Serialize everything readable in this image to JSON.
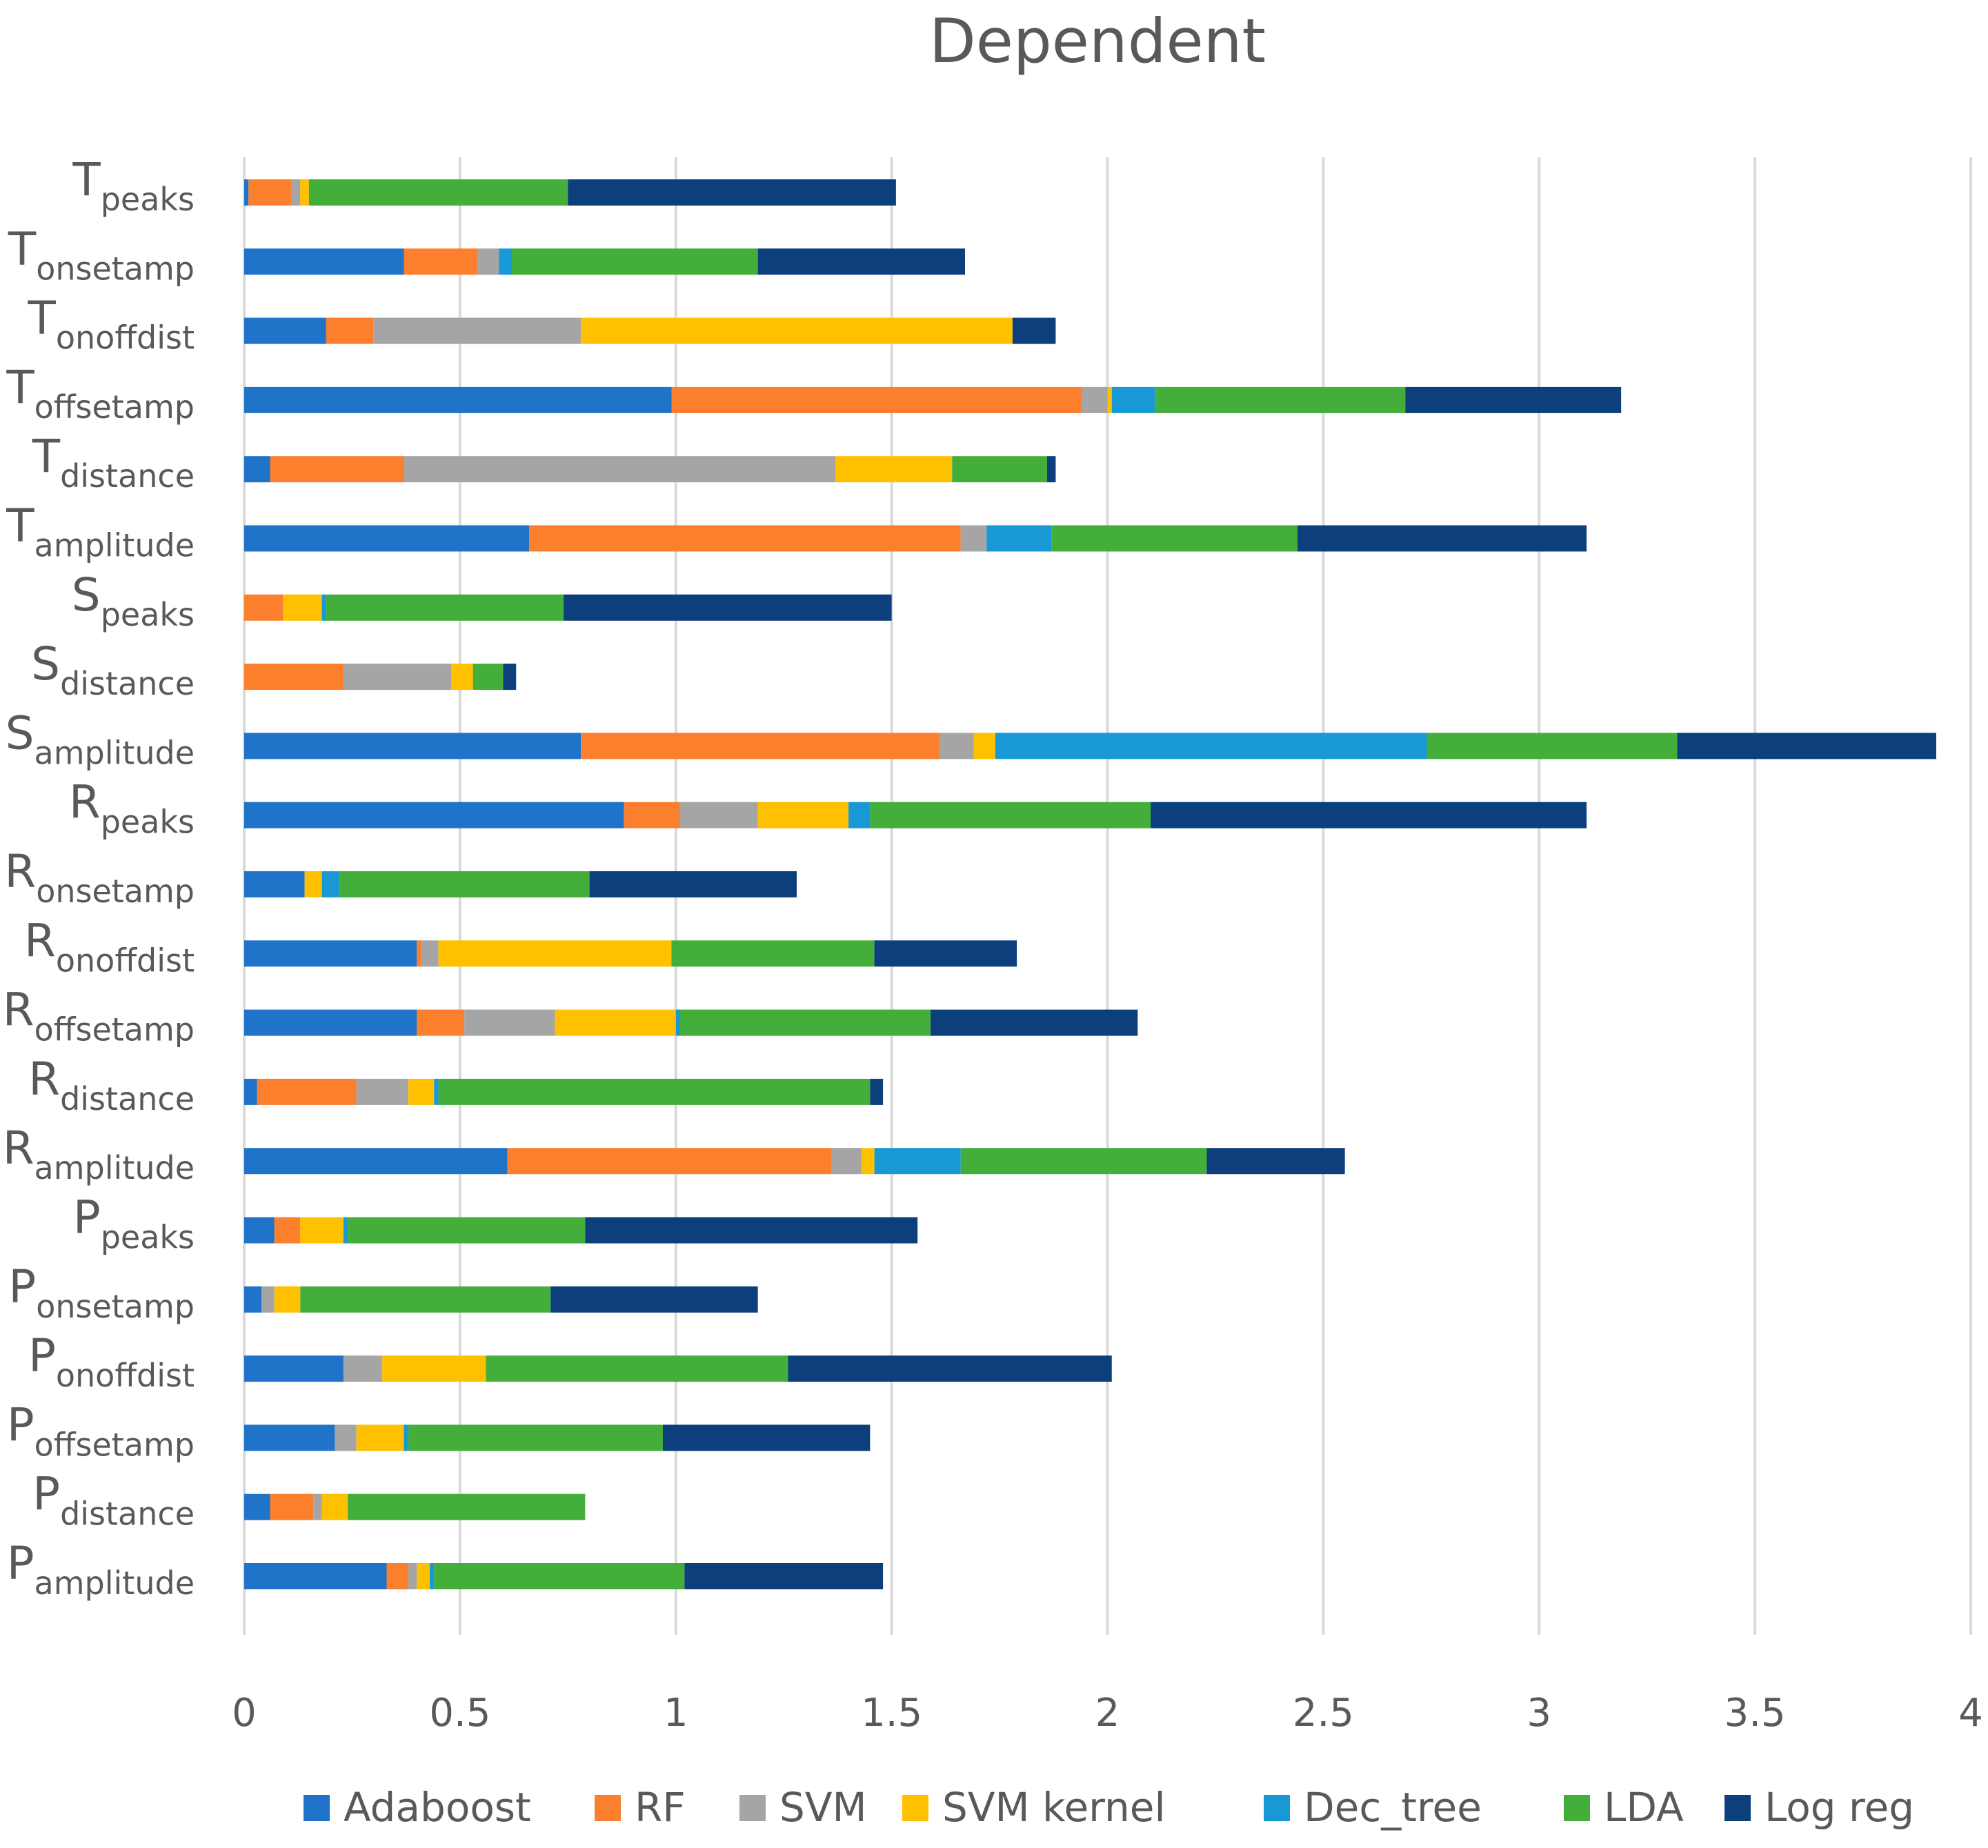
{
  "chart_data": {
    "type": "bar",
    "orientation": "horizontal",
    "stacked": true,
    "title": "Dependent",
    "xlabel": "",
    "ylabel": "",
    "xlim": [
      0,
      4
    ],
    "x_ticks": [
      "0",
      "0.5",
      "1",
      "1.5",
      "2",
      "2.5",
      "3",
      "3.5",
      "4"
    ],
    "grid": true,
    "legend_position": "bottom",
    "categories": [
      {
        "main": "T",
        "sub": "peaks"
      },
      {
        "main": "T",
        "sub": "onsetamp"
      },
      {
        "main": "T",
        "sub": "onoffdist"
      },
      {
        "main": "T",
        "sub": "offsetamp"
      },
      {
        "main": "T",
        "sub": "distance"
      },
      {
        "main": "T",
        "sub": "amplitude"
      },
      {
        "main": "S",
        "sub": "peaks"
      },
      {
        "main": "S",
        "sub": "distance"
      },
      {
        "main": "S",
        "sub": "amplitude"
      },
      {
        "main": "R",
        "sub": "peaks"
      },
      {
        "main": "R",
        "sub": "onsetamp"
      },
      {
        "main": "R",
        "sub": "onoffdist"
      },
      {
        "main": "R",
        "sub": "offsetamp"
      },
      {
        "main": "R",
        "sub": "distance"
      },
      {
        "main": "R",
        "sub": "amplitude"
      },
      {
        "main": "P",
        "sub": "peaks"
      },
      {
        "main": "P",
        "sub": "onsetamp"
      },
      {
        "main": "P",
        "sub": "onoffdist"
      },
      {
        "main": "P",
        "sub": "offsetamp"
      },
      {
        "main": "P",
        "sub": "distance"
      },
      {
        "main": "P",
        "sub": "amplitude"
      }
    ],
    "series": [
      {
        "name": "Adaboost",
        "color": "#1f74c9",
        "values": [
          0.01,
          0.37,
          0.19,
          0.99,
          0.06,
          0.66,
          0.0,
          0.0,
          0.78,
          0.88,
          0.14,
          0.4,
          0.4,
          0.03,
          0.61,
          0.07,
          0.04,
          0.23,
          0.21,
          0.06,
          0.33
        ]
      },
      {
        "name": "RF",
        "color": "#fb7f2c",
        "values": [
          0.1,
          0.17,
          0.11,
          0.95,
          0.31,
          1.0,
          0.09,
          0.23,
          0.83,
          0.13,
          0.0,
          0.01,
          0.11,
          0.23,
          0.75,
          0.06,
          0.0,
          0.0,
          0.0,
          0.1,
          0.05
        ]
      },
      {
        "name": "SVM",
        "color": "#a5a5a5",
        "values": [
          0.02,
          0.05,
          0.48,
          0.06,
          1.0,
          0.06,
          0.0,
          0.25,
          0.08,
          0.18,
          0.0,
          0.04,
          0.21,
          0.12,
          0.07,
          0.0,
          0.03,
          0.09,
          0.05,
          0.02,
          0.02
        ]
      },
      {
        "name": "SVM kernel",
        "color": "#ffc000",
        "values": [
          0.02,
          0.0,
          1.0,
          0.01,
          0.27,
          0.0,
          0.09,
          0.05,
          0.05,
          0.21,
          0.04,
          0.54,
          0.28,
          0.06,
          0.03,
          0.1,
          0.06,
          0.24,
          0.11,
          0.06,
          0.03
        ]
      },
      {
        "name": "Dec_tree",
        "color": "#1899d5",
        "values": [
          0.0,
          0.03,
          0.0,
          0.1,
          0.0,
          0.15,
          0.01,
          0.0,
          1.0,
          0.05,
          0.04,
          0.0,
          0.01,
          0.01,
          0.2,
          0.01,
          0.0,
          0.0,
          0.01,
          0.0,
          0.01
        ]
      },
      {
        "name": "LDA",
        "color": "#44ae3a",
        "values": [
          0.6,
          0.57,
          0.0,
          0.58,
          0.22,
          0.57,
          0.55,
          0.07,
          0.58,
          0.65,
          0.58,
          0.47,
          0.58,
          1.0,
          0.57,
          0.55,
          0.58,
          0.7,
          0.59,
          0.55,
          0.58
        ]
      },
      {
        "name": "Log reg",
        "color": "#0c3f7b",
        "values": [
          0.76,
          0.48,
          0.1,
          0.5,
          0.02,
          0.67,
          0.76,
          0.03,
          0.6,
          1.01,
          0.48,
          0.33,
          0.48,
          0.03,
          0.32,
          0.77,
          0.48,
          0.75,
          0.48,
          0.0,
          0.46
        ]
      }
    ]
  }
}
